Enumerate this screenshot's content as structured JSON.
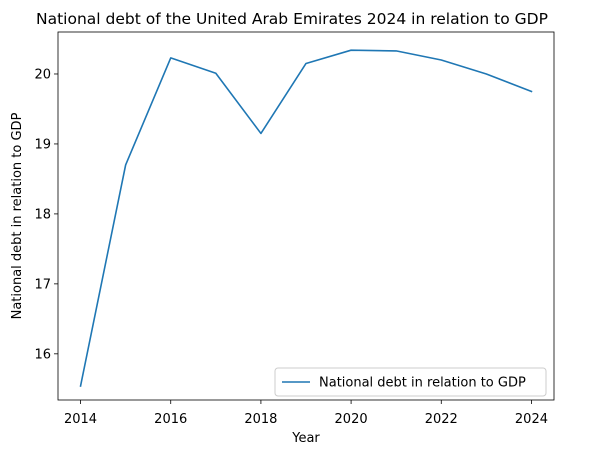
{
  "chart_data": {
    "type": "line",
    "title": "National debt of the United Arab Emirates 2024 in relation to GDP",
    "xlabel": "Year",
    "ylabel": "National debt in relation to GDP",
    "x": [
      2014,
      2015,
      2016,
      2017,
      2018,
      2019,
      2020,
      2021,
      2022,
      2023,
      2024
    ],
    "series": [
      {
        "name": "National debt in relation to GDP",
        "color": "#1f77b4",
        "values": [
          15.54,
          18.7,
          20.23,
          20.01,
          19.15,
          20.15,
          20.34,
          20.33,
          20.2,
          20.0,
          19.75
        ]
      }
    ],
    "xlim": [
      2013.5,
      2024.5
    ],
    "ylim": [
      15.34,
      20.6
    ],
    "xticks": [
      2014,
      2016,
      2018,
      2020,
      2022,
      2024
    ],
    "yticks": [
      16,
      17,
      18,
      19,
      20
    ],
    "grid": false,
    "legend_position": "lower-right"
  }
}
